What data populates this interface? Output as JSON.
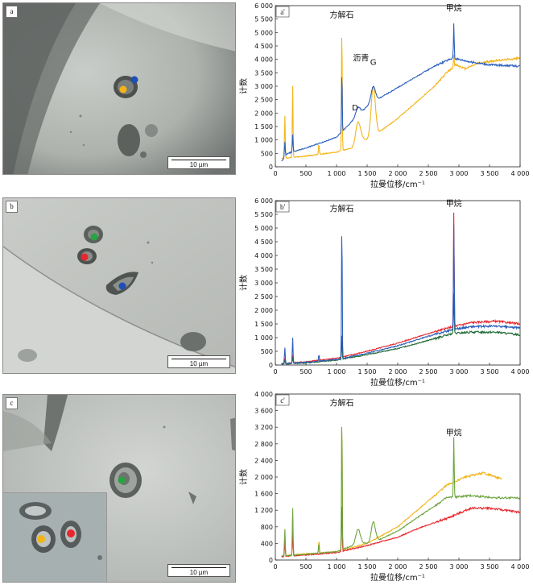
{
  "panels": [
    {
      "label": "a",
      "scale": "10 µm",
      "dots": [
        {
          "color": "#1f4fb5"
        },
        {
          "color": "#f2b418"
        }
      ]
    },
    {
      "label": "b",
      "scale": "10 µm",
      "dots": [
        {
          "color": "#2aa342"
        },
        {
          "color": "#e8262c"
        },
        {
          "color": "#1f4fb5"
        }
      ]
    },
    {
      "label": "c",
      "scale": "10 µm",
      "dots": [
        {
          "color": "#2aa342"
        }
      ],
      "inset_dots": [
        {
          "color": "#f2b418"
        },
        {
          "color": "#e8262c"
        }
      ]
    }
  ],
  "chart_data": [
    {
      "type": "line",
      "panel_label": "a'",
      "xlabel": "拉曼位移/cm⁻¹",
      "ylabel": "计数",
      "xlim": [
        0,
        4000
      ],
      "ylim": [
        0,
        6000
      ],
      "xticks": [
        0,
        500,
        1000,
        1500,
        2000,
        2500,
        3000,
        3500,
        4000
      ],
      "xtick_labels": [
        "0",
        "500",
        "1 000",
        "1 500",
        "2 000",
        "2 500",
        "3 000",
        "3 500",
        "4 000"
      ],
      "yticks": [
        0,
        500,
        1000,
        1500,
        2000,
        2500,
        3000,
        3500,
        4000,
        4500,
        5000,
        5500,
        6000
      ],
      "ytick_labels": [
        "0",
        "500",
        "1 000",
        "1 500",
        "2 000",
        "2 500",
        "3 000",
        "3 500",
        "4 000",
        "4 500",
        "5 000",
        "5 500",
        "6 000"
      ],
      "annotations": [
        {
          "text": "方解石",
          "x": 1085,
          "y": 5550
        },
        {
          "text": "沥青",
          "x": 1400,
          "y": 3950
        },
        {
          "text": "G",
          "x": 1600,
          "y": 3800
        },
        {
          "text": "D",
          "x": 1300,
          "y": 2100
        },
        {
          "text": "甲烷",
          "x": 2917,
          "y": 5800
        }
      ],
      "series": [
        {
          "color": "#f2b418",
          "baseline": [
            [
              100,
              300
            ],
            [
              500,
              400
            ],
            [
              1000,
              550
            ],
            [
              1250,
              700
            ],
            [
              1400,
              1100
            ],
            [
              1500,
              1000
            ],
            [
              1700,
              1300
            ],
            [
              2000,
              1800
            ],
            [
              2300,
              2400
            ],
            [
              2600,
              3000
            ],
            [
              2800,
              3500
            ],
            [
              2950,
              3800
            ],
            [
              3100,
              3650
            ],
            [
              3300,
              3850
            ],
            [
              3600,
              3950
            ],
            [
              4000,
              4050
            ]
          ],
          "peaks": [
            [
              155,
              1600
            ],
            [
              283,
              2700
            ],
            [
              712,
              400
            ],
            [
              1087,
              4750
            ],
            [
              1350,
              700
            ],
            [
              1600,
              1850
            ],
            [
              2917,
              400
            ]
          ]
        },
        {
          "color": "#2b5fbd",
          "baseline": [
            [
              100,
              200
            ],
            [
              200,
              500
            ],
            [
              500,
              700
            ],
            [
              1000,
              1100
            ],
            [
              1300,
              1800
            ],
            [
              1500,
              2250
            ],
            [
              1700,
              2550
            ],
            [
              2000,
              2950
            ],
            [
              2300,
              3350
            ],
            [
              2600,
              3750
            ],
            [
              2900,
              4050
            ],
            [
              3200,
              3900
            ],
            [
              3500,
              3800
            ],
            [
              4000,
              3750
            ]
          ],
          "peaks": [
            [
              155,
              550
            ],
            [
              283,
              650
            ],
            [
              1087,
              2300
            ],
            [
              1350,
              300
            ],
            [
              1600,
              600
            ],
            [
              2917,
              1300
            ]
          ]
        }
      ]
    },
    {
      "type": "line",
      "panel_label": "b'",
      "xlabel": "拉曼位移/cm⁻¹",
      "ylabel": "计数",
      "xlim": [
        0,
        4000
      ],
      "ylim": [
        0,
        6000
      ],
      "xticks": [
        0,
        500,
        1000,
        1500,
        2000,
        2500,
        3000,
        3500,
        4000
      ],
      "xtick_labels": [
        "0",
        "500",
        "1 000",
        "1 500",
        "2 000",
        "2 500",
        "3 000",
        "3 500",
        "4 000"
      ],
      "yticks": [
        0,
        500,
        1000,
        1500,
        2000,
        2500,
        3000,
        3500,
        4000,
        4500,
        5000,
        5500,
        6000
      ],
      "ytick_labels": [
        "0",
        "500",
        "1 000",
        "1 500",
        "2 000",
        "2 500",
        "3 000",
        "3 500",
        "4 000",
        "4 500",
        "5 000",
        "5 500",
        "6 000"
      ],
      "annotations": [
        {
          "text": "方解石",
          "x": 1085,
          "y": 5600
        },
        {
          "text": "甲烷",
          "x": 2917,
          "y": 5800
        }
      ],
      "series": [
        {
          "color": "#e8262c",
          "baseline": [
            [
              100,
              50
            ],
            [
              500,
              120
            ],
            [
              1000,
              250
            ],
            [
              1500,
              500
            ],
            [
              2000,
              800
            ],
            [
              2500,
              1150
            ],
            [
              2900,
              1400
            ],
            [
              3200,
              1550
            ],
            [
              3600,
              1600
            ],
            [
              4000,
              1500
            ]
          ],
          "peaks": [
            [
              155,
              200
            ],
            [
              283,
              300
            ],
            [
              1087,
              900
            ],
            [
              2917,
              4200
            ]
          ]
        },
        {
          "color": "#1f6b35",
          "baseline": [
            [
              100,
              30
            ],
            [
              500,
              80
            ],
            [
              1000,
              180
            ],
            [
              1500,
              380
            ],
            [
              2000,
              600
            ],
            [
              2500,
              900
            ],
            [
              2900,
              1150
            ],
            [
              3200,
              1200
            ],
            [
              3600,
              1200
            ],
            [
              4000,
              1100
            ]
          ],
          "peaks": [
            [
              155,
              150
            ],
            [
              283,
              250
            ],
            [
              1087,
              700
            ],
            [
              2917,
              1500
            ]
          ]
        },
        {
          "color": "#2b5fbd",
          "baseline": [
            [
              100,
              40
            ],
            [
              500,
              100
            ],
            [
              1000,
              200
            ],
            [
              1500,
              430
            ],
            [
              2000,
              700
            ],
            [
              2500,
              1050
            ],
            [
              2900,
              1300
            ],
            [
              3200,
              1400
            ],
            [
              3600,
              1420
            ],
            [
              4000,
              1350
            ]
          ],
          "peaks": [
            [
              155,
              600
            ],
            [
              283,
              950
            ],
            [
              712,
              250
            ],
            [
              1087,
              5050
            ],
            [
              2917,
              3900
            ]
          ]
        }
      ]
    },
    {
      "type": "line",
      "panel_label": "c'",
      "xlabel": "拉曼位移/cm⁻¹",
      "ylabel": "计数",
      "xlim": [
        0,
        4000
      ],
      "ylim": [
        0,
        4000
      ],
      "xticks": [
        0,
        500,
        1000,
        1500,
        2000,
        2500,
        3000,
        3500,
        4000
      ],
      "xtick_labels": [
        "0",
        "500",
        "1 000",
        "1 500",
        "2 000",
        "2 500",
        "3 000",
        "3 500",
        "4 000"
      ],
      "yticks": [
        0,
        400,
        800,
        1200,
        1600,
        2000,
        2400,
        2800,
        3200,
        3600,
        4000
      ],
      "ytick_labels": [
        "0",
        "400",
        "800",
        "1 200",
        "1 600",
        "2 000",
        "2 400",
        "2 800",
        "3 200",
        "3 600",
        "4 000"
      ],
      "annotations": [
        {
          "text": "方解石",
          "x": 1085,
          "y": 3720
        },
        {
          "text": "甲烷",
          "x": 2917,
          "y": 3000
        }
      ],
      "series": [
        {
          "color": "#f2b418",
          "baseline": [
            [
              100,
              100
            ],
            [
              500,
              150
            ],
            [
              1000,
              200
            ],
            [
              1500,
              400
            ],
            [
              2000,
              800
            ],
            [
              2400,
              1300
            ],
            [
              2800,
              1800
            ],
            [
              3100,
              2000
            ],
            [
              3400,
              2100
            ],
            [
              3700,
              1950
            ]
          ],
          "peaks": [
            [
              155,
              500
            ],
            [
              283,
              950
            ],
            [
              712,
              300
            ],
            [
              1087,
              3300
            ]
          ]
        },
        {
          "color": "#e8262c",
          "baseline": [
            [
              100,
              80
            ],
            [
              500,
              120
            ],
            [
              1000,
              180
            ],
            [
              1500,
              350
            ],
            [
              2000,
              550
            ],
            [
              2400,
              800
            ],
            [
              2800,
              1000
            ],
            [
              3200,
              1250
            ],
            [
              3500,
              1250
            ],
            [
              4000,
              1150
            ]
          ],
          "peaks": [
            [
              155,
              350
            ],
            [
              283,
              600
            ],
            [
              1087,
              1200
            ]
          ]
        },
        {
          "color": "#6ea43e",
          "baseline": [
            [
              100,
              90
            ],
            [
              500,
              140
            ],
            [
              1000,
              200
            ],
            [
              1400,
              420
            ],
            [
              1550,
              380
            ],
            [
              2000,
              700
            ],
            [
              2400,
              1100
            ],
            [
              2800,
              1500
            ],
            [
              3200,
              1550
            ],
            [
              3600,
              1500
            ],
            [
              4000,
              1500
            ]
          ],
          "peaks": [
            [
              155,
              650
            ],
            [
              283,
              1150
            ],
            [
              712,
              250
            ],
            [
              1087,
              3350
            ],
            [
              1350,
              350
            ],
            [
              1600,
              500
            ],
            [
              2917,
              1450
            ]
          ]
        }
      ]
    }
  ]
}
